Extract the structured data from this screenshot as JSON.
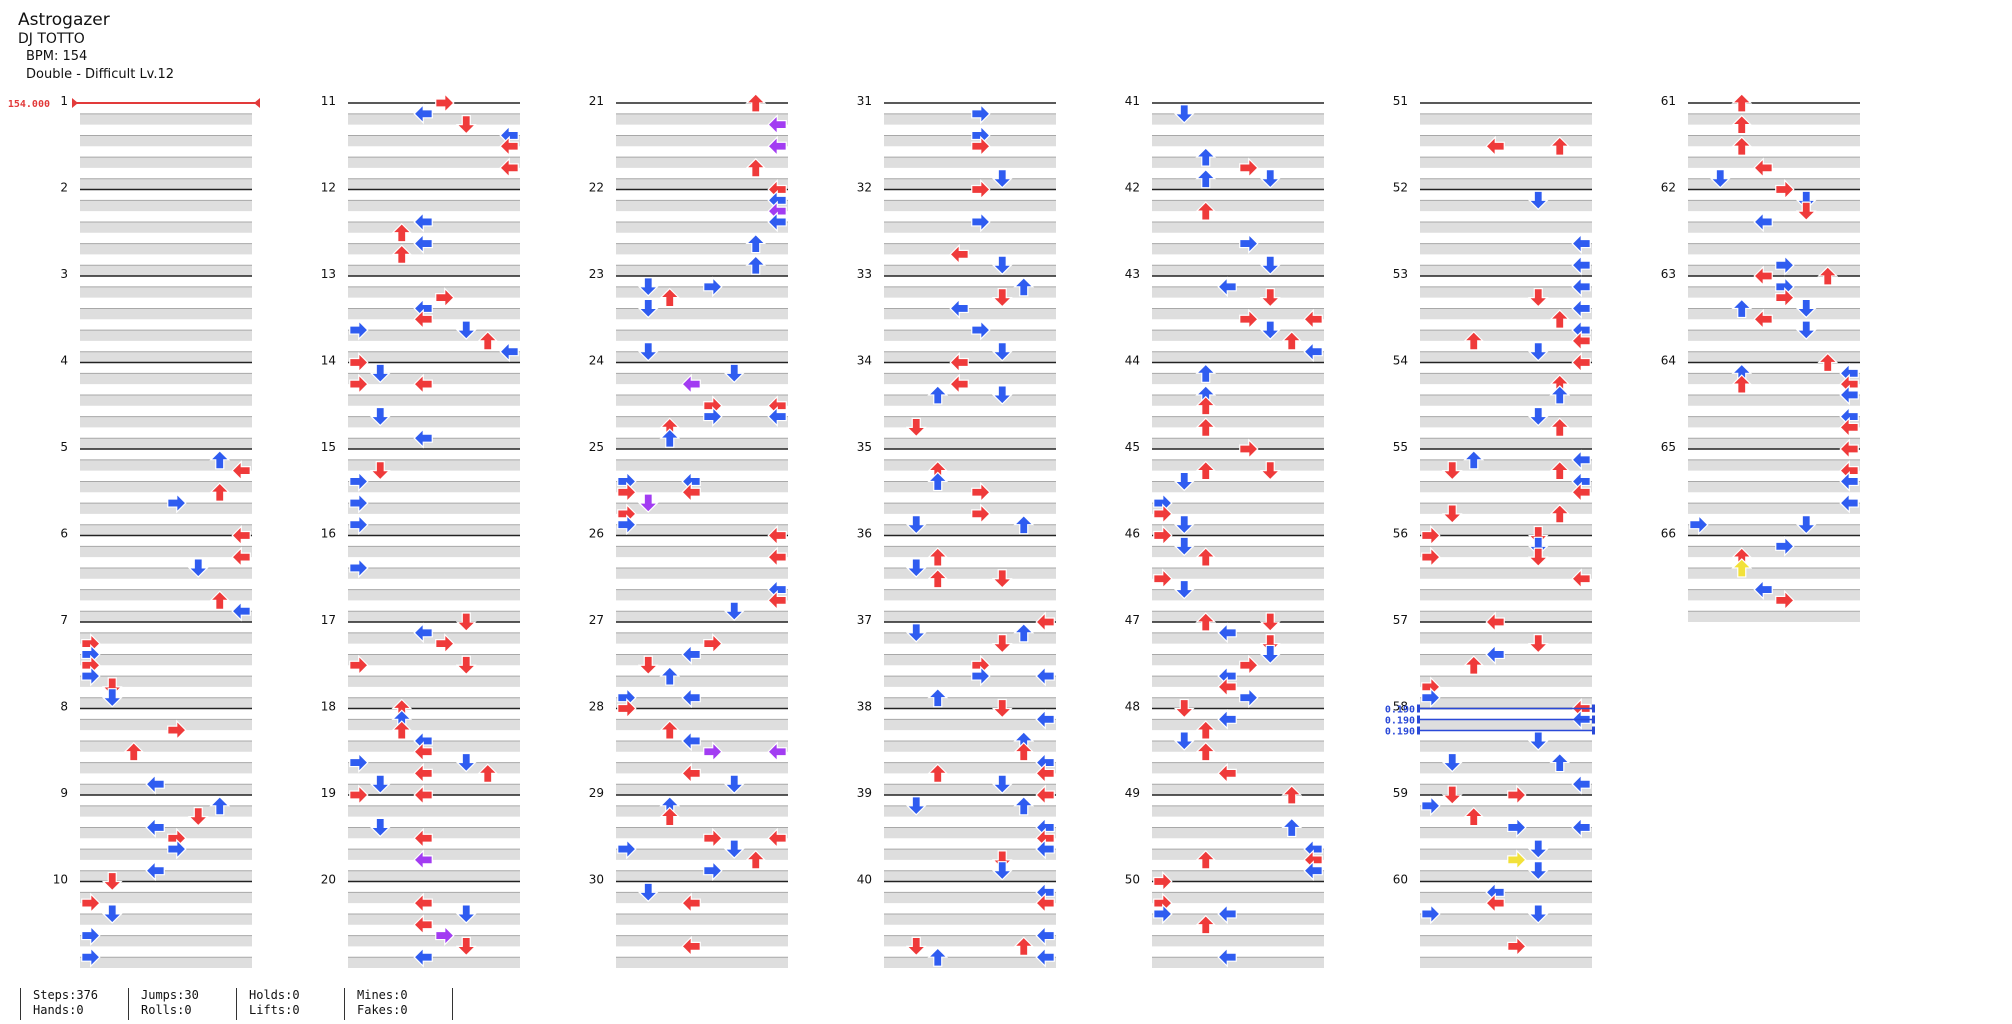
{
  "song": {
    "title": "Astrogazer",
    "artist": "DJ TOTTO",
    "bpm": "BPM: 154",
    "difficulty": "Double - Difficult Lv.12"
  },
  "chart_data": {
    "type": "step-chart",
    "bpm_change": "154.000",
    "stops": [
      "0.190",
      "0.190",
      "0.190"
    ],
    "stop_measure": 58,
    "measures": [
      1,
      2,
      3,
      4,
      5,
      6,
      7,
      8,
      9,
      10,
      11,
      12,
      13,
      14,
      15,
      16,
      17,
      18,
      19,
      20,
      21,
      22,
      23,
      24,
      25,
      26,
      27,
      28,
      29,
      30,
      31,
      32,
      33,
      34,
      35,
      36,
      37,
      38,
      39,
      40,
      41,
      42,
      43,
      44,
      45,
      46,
      47,
      48,
      49,
      50,
      51,
      52,
      53,
      54,
      55,
      56,
      57,
      58,
      59,
      60,
      61,
      62,
      63,
      64,
      65,
      66
    ],
    "colors": {
      "quarter": "#ef3a3a",
      "eighth": "#2f5cf0",
      "sixteenth": "#a23cf2",
      "other": "#f2e13a"
    }
  },
  "stats": {
    "steps": "Steps:376",
    "hands": "Hands:0",
    "jumps": "Jumps:30",
    "rolls": "Rolls:0",
    "holds": "Holds:0",
    "lifts": "Lifts:0",
    "mines": "Mines:0",
    "fakes": "Fakes:0"
  }
}
